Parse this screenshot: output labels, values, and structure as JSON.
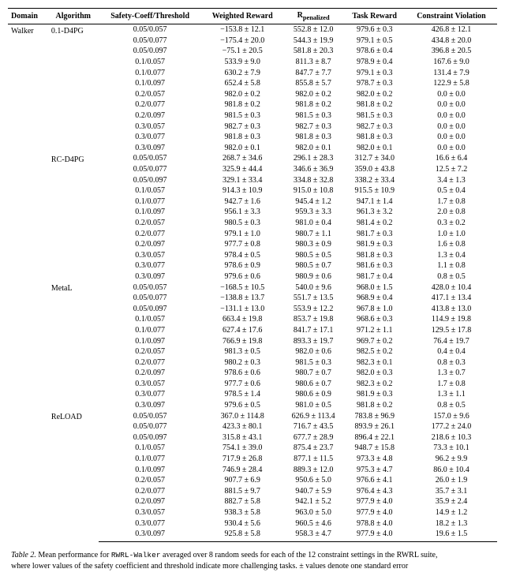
{
  "table": {
    "columns": [
      "Domain",
      "Algorithm",
      "Safety-Coeff/Threshold",
      "Weighted Reward",
      "R_penalized",
      "Task Reward",
      "Constraint Violation"
    ],
    "domain": "Walker",
    "groups": [
      {
        "algorithm": "0.1-D4PG",
        "rows": [
          {
            "params": "0.05/0.057",
            "wr": "−153.8 ± 12.1",
            "rp": "552.8 ± 12.0",
            "tr": "979.6 ± 0.3",
            "cv": "426.8 ± 12.1"
          },
          {
            "params": "0.05/0.077",
            "wr": "−175.4 ± 20.0",
            "rp": "544.3 ± 19.9",
            "tr": "979.1 ± 0.5",
            "cv": "434.8 ± 20.0"
          },
          {
            "params": "0.05/0.097",
            "wr": "−75.1 ± 20.5",
            "rp": "581.8 ± 20.3",
            "tr": "978.6 ± 0.4",
            "cv": "396.8 ± 20.5"
          },
          {
            "params": "0.1/0.057",
            "wr": "533.9 ± 9.0",
            "rp": "811.3 ± 8.7",
            "tr": "978.9 ± 0.4",
            "cv": "167.6 ± 9.0"
          },
          {
            "params": "0.1/0.077",
            "wr": "630.2 ± 7.9",
            "rp": "847.7 ± 7.7",
            "tr": "979.1 ± 0.3",
            "cv": "131.4 ± 7.9"
          },
          {
            "params": "0.1/0.097",
            "wr": "652.4 ± 5.8",
            "rp": "855.8 ± 5.7",
            "tr": "978.7 ± 0.3",
            "cv": "122.9 ± 5.8"
          },
          {
            "params": "0.2/0.057",
            "wr": "982.0 ± 0.2",
            "rp": "982.0 ± 0.2",
            "tr": "982.0 ± 0.2",
            "cv": "0.0 ± 0.0"
          },
          {
            "params": "0.2/0.077",
            "wr": "981.8 ± 0.2",
            "rp": "981.8 ± 0.2",
            "tr": "981.8 ± 0.2",
            "cv": "0.0 ± 0.0"
          },
          {
            "params": "0.2/0.097",
            "wr": "981.5 ± 0.3",
            "rp": "981.5 ± 0.3",
            "tr": "981.5 ± 0.3",
            "cv": "0.0 ± 0.0"
          },
          {
            "params": "0.3/0.057",
            "wr": "982.7 ± 0.3",
            "rp": "982.7 ± 0.3",
            "tr": "982.7 ± 0.3",
            "cv": "0.0 ± 0.0"
          },
          {
            "params": "0.3/0.077",
            "wr": "981.8 ± 0.3",
            "rp": "981.8 ± 0.3",
            "tr": "981.8 ± 0.3",
            "cv": "0.0 ± 0.0"
          },
          {
            "params": "0.3/0.097",
            "wr": "982.0 ± 0.1",
            "rp": "982.0 ± 0.1",
            "tr": "982.0 ± 0.1",
            "cv": "0.0 ± 0.0"
          }
        ]
      },
      {
        "algorithm": "RC-D4PG",
        "rows": [
          {
            "params": "0.05/0.057",
            "wr": "268.7 ± 34.6",
            "rp": "296.1 ± 28.3",
            "tr": "312.7 ± 34.0",
            "cv": "16.6 ± 6.4"
          },
          {
            "params": "0.05/0.077",
            "wr": "325.9 ± 44.4",
            "rp": "346.6 ± 36.9",
            "tr": "359.0 ± 43.8",
            "cv": "12.5 ± 7.2"
          },
          {
            "params": "0.05/0.097",
            "wr": "329.1 ± 33.4",
            "rp": "334.8 ± 32.8",
            "tr": "338.2 ± 33.4",
            "cv": "3.4 ± 1.3"
          },
          {
            "params": "0.1/0.057",
            "wr": "914.3 ± 10.9",
            "rp": "915.0 ± 10.8",
            "tr": "915.5 ± 10.9",
            "cv": "0.5 ± 0.4"
          },
          {
            "params": "0.1/0.077",
            "wr": "942.7 ± 1.6",
            "rp": "945.4 ± 1.2",
            "tr": "947.1 ± 1.4",
            "cv": "1.7 ± 0.8"
          },
          {
            "params": "0.1/0.097",
            "wr": "956.1 ± 3.3",
            "rp": "959.3 ± 3.3",
            "tr": "961.3 ± 3.2",
            "cv": "2.0 ± 0.8"
          },
          {
            "params": "0.2/0.057",
            "wr": "980.5 ± 0.3",
            "rp": "981.0 ± 0.4",
            "tr": "981.4 ± 0.2",
            "cv": "0.3 ± 0.2"
          },
          {
            "params": "0.2/0.077",
            "wr": "979.1 ± 1.0",
            "rp": "980.7 ± 1.1",
            "tr": "981.7 ± 0.3",
            "cv": "1.0 ± 1.0"
          },
          {
            "params": "0.2/0.097",
            "wr": "977.7 ± 0.8",
            "rp": "980.3 ± 0.9",
            "tr": "981.9 ± 0.3",
            "cv": "1.6 ± 0.8"
          },
          {
            "params": "0.3/0.057",
            "wr": "978.4 ± 0.5",
            "rp": "980.5 ± 0.5",
            "tr": "981.8 ± 0.3",
            "cv": "1.3 ± 0.4"
          },
          {
            "params": "0.3/0.077",
            "wr": "978.6 ± 0.9",
            "rp": "980.5 ± 0.7",
            "tr": "981.6 ± 0.3",
            "cv": "1.1 ± 0.8"
          },
          {
            "params": "0.3/0.097",
            "wr": "979.6 ± 0.6",
            "rp": "980.9 ± 0.6",
            "tr": "981.7 ± 0.4",
            "cv": "0.8 ± 0.5"
          }
        ]
      },
      {
        "algorithm": "MetaL",
        "rows": [
          {
            "params": "0.05/0.057",
            "wr": "−168.5 ± 10.5",
            "rp": "540.0 ± 9.6",
            "tr": "968.0 ± 1.5",
            "cv": "428.0 ± 10.4"
          },
          {
            "params": "0.05/0.077",
            "wr": "−138.8 ± 13.7",
            "rp": "551.7 ± 13.5",
            "tr": "968.9 ± 0.4",
            "cv": "417.1 ± 13.4"
          },
          {
            "params": "0.05/0.097",
            "wr": "−131.1 ± 13.0",
            "rp": "553.9 ± 12.2",
            "tr": "967.8 ± 1.0",
            "cv": "413.8 ± 13.0"
          },
          {
            "params": "0.1/0.057",
            "wr": "663.4 ± 19.8",
            "rp": "853.7 ± 19.8",
            "tr": "968.6 ± 0.3",
            "cv": "114.9 ± 19.8"
          },
          {
            "params": "0.1/0.077",
            "wr": "627.4 ± 17.6",
            "rp": "841.7 ± 17.1",
            "tr": "971.2 ± 1.1",
            "cv": "129.5 ± 17.8"
          },
          {
            "params": "0.1/0.097",
            "wr": "766.9 ± 19.8",
            "rp": "893.3 ± 19.7",
            "tr": "969.7 ± 0.2",
            "cv": "76.4 ± 19.7"
          },
          {
            "params": "0.2/0.057",
            "wr": "981.3 ± 0.5",
            "rp": "982.0 ± 0.6",
            "tr": "982.5 ± 0.2",
            "cv": "0.4 ± 0.4"
          },
          {
            "params": "0.2/0.077",
            "wr": "980.2 ± 0.3",
            "rp": "981.5 ± 0.3",
            "tr": "982.3 ± 0.1",
            "cv": "0.8 ± 0.3"
          },
          {
            "params": "0.2/0.097",
            "wr": "978.6 ± 0.6",
            "rp": "980.7 ± 0.7",
            "tr": "982.0 ± 0.3",
            "cv": "1.3 ± 0.7"
          },
          {
            "params": "0.3/0.057",
            "wr": "977.7 ± 0.6",
            "rp": "980.6 ± 0.7",
            "tr": "982.3 ± 0.2",
            "cv": "1.7 ± 0.8"
          },
          {
            "params": "0.3/0.077",
            "wr": "978.5 ± 1.4",
            "rp": "980.6 ± 0.9",
            "tr": "981.9 ± 0.3",
            "cv": "1.3 ± 1.1"
          },
          {
            "params": "0.3/0.097",
            "wr": "979.6 ± 0.5",
            "rp": "981.0 ± 0.5",
            "tr": "981.8 ± 0.2",
            "cv": "0.8 ± 0.5"
          }
        ]
      },
      {
        "algorithm": "ReLOAD",
        "rows": [
          {
            "params": "0.05/0.057",
            "wr": "367.0 ± 114.8",
            "rp": "626.9 ± 113.4",
            "tr": "783.8 ± 96.9",
            "cv": "157.0 ± 9.6"
          },
          {
            "params": "0.05/0.077",
            "wr": "423.3 ± 80.1",
            "rp": "716.7 ± 43.5",
            "tr": "893.9 ± 26.1",
            "cv": "177.2 ± 24.0"
          },
          {
            "params": "0.05/0.097",
            "wr": "315.8 ± 43.1",
            "rp": "677.7 ± 28.9",
            "tr": "896.4 ± 22.1",
            "cv": "218.6 ± 10.3"
          },
          {
            "params": "0.1/0.057",
            "wr": "754.1 ± 39.0",
            "rp": "875.4 ± 23.7",
            "tr": "948.7 ± 15.8",
            "cv": "73.3 ± 10.1"
          },
          {
            "params": "0.1/0.077",
            "wr": "717.9 ± 26.8",
            "rp": "877.1 ± 11.5",
            "tr": "973.3 ± 4.8",
            "cv": "96.2 ± 9.9"
          },
          {
            "params": "0.1/0.097",
            "wr": "746.9 ± 28.4",
            "rp": "889.3 ± 12.0",
            "tr": "975.3 ± 4.7",
            "cv": "86.0 ± 10.4"
          },
          {
            "params": "0.2/0.057",
            "wr": "907.7 ± 6.9",
            "rp": "950.6 ± 5.0",
            "tr": "976.6 ± 4.1",
            "cv": "26.0 ± 1.9"
          },
          {
            "params": "0.2/0.077",
            "wr": "881.5 ± 9.7",
            "rp": "940.7 ± 5.9",
            "tr": "976.4 ± 4.3",
            "cv": "35.7 ± 3.1"
          },
          {
            "params": "0.2/0.097",
            "wr": "882.7 ± 5.8",
            "rp": "942.1 ± 5.2",
            "tr": "977.9 ± 4.0",
            "cv": "35.9 ± 2.4"
          },
          {
            "params": "0.3/0.057",
            "wr": "938.3 ± 5.8",
            "rp": "963.0 ± 5.0",
            "tr": "977.9 ± 4.0",
            "cv": "14.9 ± 1.2"
          },
          {
            "params": "0.3/0.077",
            "wr": "930.4 ± 5.6",
            "rp": "960.5 ± 4.6",
            "tr": "978.8 ± 4.0",
            "cv": "18.2 ± 1.3"
          },
          {
            "params": "0.3/0.097",
            "wr": "925.8 ± 5.8",
            "rp": "958.3 ± 4.7",
            "tr": "977.9 ± 4.0",
            "cv": "19.6 ± 1.5"
          }
        ]
      }
    ]
  },
  "caption": {
    "lead": "Table 2.",
    "body": "Mean performance for RWRL-Walker averaged over 8 random seeds for each of the 12 constraint settings in the RWRL suite, where lower values of the safety coefficient and threshold indicate more challenging tasks. ± values denote one standard error",
    "code_token": "RWRL-Walker"
  },
  "styles": {
    "font_family": "Times New Roman, serif",
    "font_size_pt": 10,
    "background_color": "#ffffff",
    "text_color": "#000000",
    "rule_color": "#000000"
  }
}
